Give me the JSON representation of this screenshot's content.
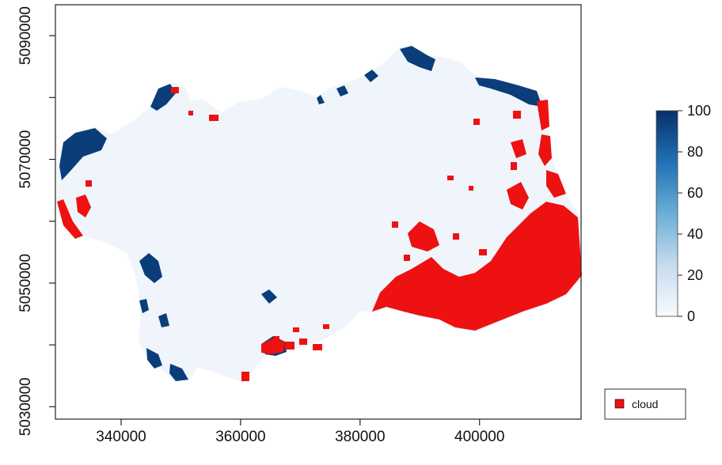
{
  "map": {
    "x_axis": {
      "ticks": [
        340000,
        360000,
        380000,
        400000
      ],
      "tick_labels": [
        "340000",
        "360000",
        "380000",
        "400000"
      ],
      "range": [
        329000,
        417000
      ]
    },
    "y_axis": {
      "ticks": [
        5030000,
        5050000,
        5070000,
        5090000
      ],
      "tick_labels": [
        "5030000",
        "5050000",
        "5070000",
        "5090000"
      ],
      "minor_ticks": [
        5040000,
        5060000,
        5080000
      ],
      "range": [
        5028000,
        5095000
      ]
    },
    "colorbar": {
      "ticks": [
        0,
        20,
        40,
        60,
        80,
        100
      ],
      "tick_labels": [
        "0",
        "20",
        "40",
        "60",
        "80",
        "100"
      ],
      "range": [
        0,
        100
      ],
      "low_color": "#f2f6fb",
      "high_color": "#08306b"
    },
    "legend": {
      "label": "cloud",
      "color": "#ee1111"
    },
    "colors": {
      "land": "#eff5fb",
      "high": "#0b3d7a",
      "cloud": "#ee1111"
    }
  }
}
